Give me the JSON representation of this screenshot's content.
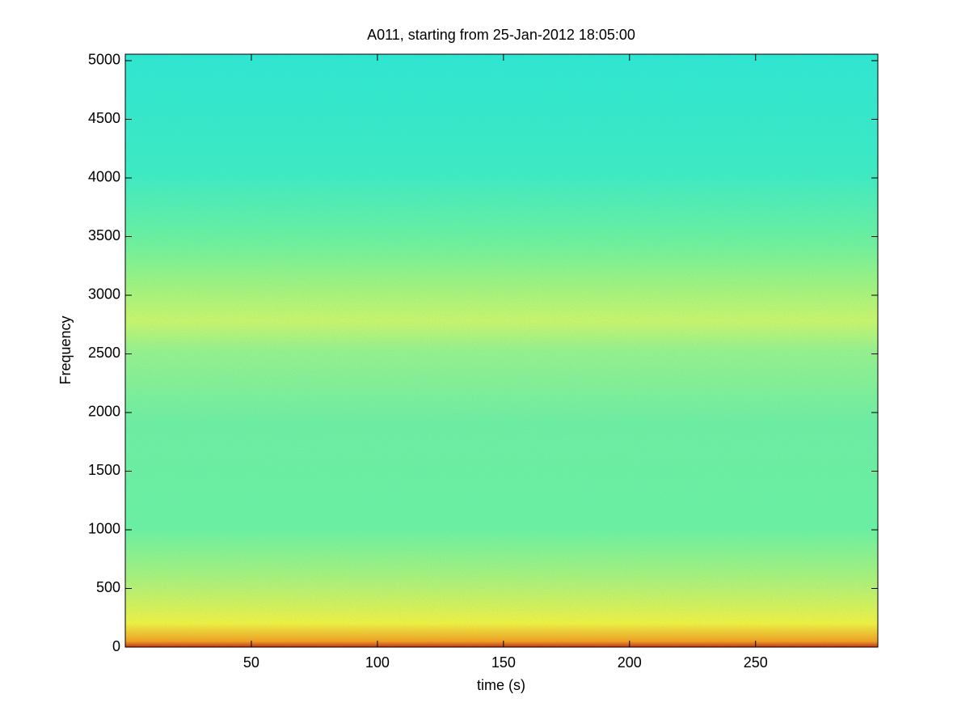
{
  "chart_data": {
    "type": "spectrogram",
    "title": "A011, starting from 25-Jan-2012 18:05:00",
    "x_label": "time (s)",
    "y_label": "Frequency",
    "xlim": [
      0,
      298.5
    ],
    "xticks": [
      50,
      100,
      150,
      200,
      250
    ],
    "ylim": [
      0,
      5055
    ],
    "yticks": [
      0,
      500,
      1000,
      1500,
      2000,
      2500,
      3000,
      3500,
      4000,
      4500,
      5000
    ]
  }
}
